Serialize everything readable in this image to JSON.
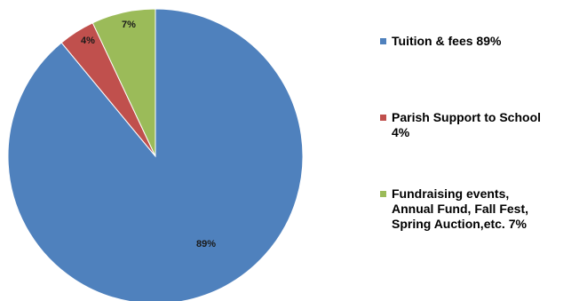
{
  "chart_data": {
    "type": "pie",
    "start_angle_deg": 0,
    "direction": "clockwise",
    "slices": [
      {
        "label": "Tuition & fees 89%",
        "value": 89,
        "data_label": "89%",
        "color": "#4F81BD"
      },
      {
        "label": "Parish Support to School\n4%",
        "value": 4,
        "data_label": "4%",
        "color": "#C0504D"
      },
      {
        "label": "Fundraising events,\nAnnual Fund, Fall Fest,\nSpring Auction,etc. 7%",
        "value": 7,
        "data_label": "7%",
        "color": "#9BBB59"
      }
    ],
    "legend_position": "right"
  }
}
